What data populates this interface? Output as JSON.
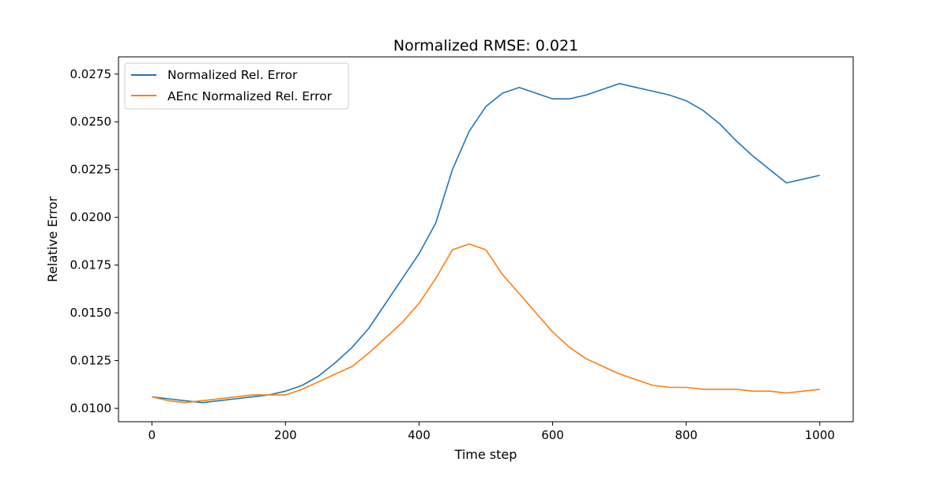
{
  "chart_data": {
    "type": "line",
    "title": "Normalized RMSE: 0.021",
    "xlabel": "Time step",
    "ylabel": "Relative Error",
    "xlim": [
      -50,
      1050
    ],
    "ylim": [
      0.0093,
      0.0284
    ],
    "xticks": [
      0,
      200,
      400,
      600,
      800,
      1000
    ],
    "xtick_labels": [
      "0",
      "200",
      "400",
      "600",
      "800",
      "1000"
    ],
    "yticks": [
      0.01,
      0.0125,
      0.015,
      0.0175,
      0.02,
      0.0225,
      0.025,
      0.0275
    ],
    "ytick_labels": [
      "0.0100",
      "0.0125",
      "0.0150",
      "0.0175",
      "0.0200",
      "0.0225",
      "0.0250",
      "0.0275"
    ],
    "grid": false,
    "legend_position": "top-left",
    "series": [
      {
        "name": "Normalized Rel. Error",
        "color": "#1f77b4",
        "x": [
          0,
          25,
          50,
          75,
          100,
          125,
          150,
          175,
          200,
          225,
          250,
          275,
          300,
          325,
          350,
          375,
          400,
          425,
          450,
          475,
          500,
          525,
          550,
          575,
          600,
          625,
          650,
          675,
          700,
          725,
          750,
          775,
          800,
          825,
          850,
          875,
          900,
          925,
          950,
          975,
          1000
        ],
        "y": [
          0.0106,
          0.0105,
          0.0104,
          0.0103,
          0.0104,
          0.0105,
          0.0106,
          0.0107,
          0.0109,
          0.0112,
          0.0117,
          0.0124,
          0.0132,
          0.0142,
          0.0155,
          0.0168,
          0.0181,
          0.0197,
          0.0225,
          0.0245,
          0.0258,
          0.0265,
          0.0268,
          0.0265,
          0.0262,
          0.0262,
          0.0264,
          0.0267,
          0.027,
          0.0268,
          0.0266,
          0.0264,
          0.0261,
          0.0256,
          0.0249,
          0.024,
          0.0232,
          0.0225,
          0.0218,
          0.022,
          0.0222
        ]
      },
      {
        "name": "AEnc Normalized Rel. Error",
        "color": "#ff7f0e",
        "x": [
          0,
          25,
          50,
          75,
          100,
          125,
          150,
          175,
          200,
          225,
          250,
          275,
          300,
          325,
          350,
          375,
          400,
          425,
          450,
          475,
          500,
          525,
          550,
          575,
          600,
          625,
          650,
          675,
          700,
          725,
          750,
          775,
          800,
          825,
          850,
          875,
          900,
          925,
          950,
          975,
          1000
        ],
        "y": [
          0.0106,
          0.0104,
          0.0103,
          0.0104,
          0.0105,
          0.0106,
          0.0107,
          0.0107,
          0.0107,
          0.011,
          0.0114,
          0.0118,
          0.0122,
          0.0129,
          0.0137,
          0.0145,
          0.0155,
          0.0168,
          0.0183,
          0.0186,
          0.0183,
          0.017,
          0.016,
          0.015,
          0.014,
          0.0132,
          0.0126,
          0.0122,
          0.0118,
          0.0115,
          0.0112,
          0.0111,
          0.0111,
          0.011,
          0.011,
          0.011,
          0.0109,
          0.0109,
          0.0108,
          0.0109,
          0.011
        ]
      }
    ]
  }
}
